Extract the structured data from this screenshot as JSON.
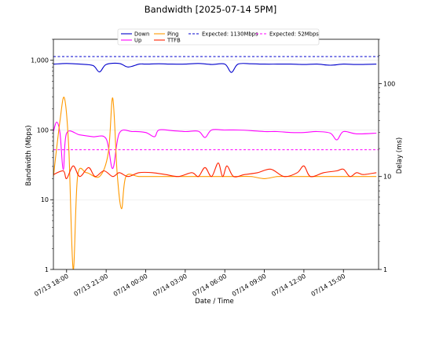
{
  "chart_data": {
    "type": "line",
    "title": "Bandwidth [2025-07-14 5PM]",
    "xlabel": "Date / Time",
    "ylabel": "Bandwidth (Mbps)",
    "ylabel_right": "Delay (ms)",
    "x_range": [
      "2025-07-13 17:00",
      "2025-07-14 17:40"
    ],
    "x_ticks": [
      {
        "t": "2025-07-13 18:00",
        "label": "07/13 18:00"
      },
      {
        "t": "2025-07-13 21:00",
        "label": "07/13 21:00"
      },
      {
        "t": "2025-07-14 00:00",
        "label": "07/14 00:00"
      },
      {
        "t": "2025-07-14 03:00",
        "label": "07/14 03:00"
      },
      {
        "t": "2025-07-14 06:00",
        "label": "07/14 06:00"
      },
      {
        "t": "2025-07-14 09:00",
        "label": "07/14 09:00"
      },
      {
        "t": "2025-07-14 12:00",
        "label": "07/14 12:00"
      },
      {
        "t": "2025-07-14 15:00",
        "label": "07/14 15:00"
      }
    ],
    "y_left": {
      "scale": "log",
      "range": [
        1,
        2000
      ],
      "ticks": [
        1,
        10,
        100,
        1000
      ],
      "tick_labels": [
        "1",
        "10",
        "100",
        "1,000"
      ]
    },
    "y_right": {
      "scale": "log",
      "range": [
        1,
        300
      ],
      "ticks": [
        1,
        10,
        100
      ],
      "tick_labels": [
        "1",
        "10",
        "100"
      ]
    },
    "legend": {
      "placement": "top-center"
    },
    "reference_lines": [
      {
        "name": "Expected: 1130Mbps",
        "value": 1130,
        "axis": "left",
        "color": "#0000cc",
        "style": "dashed"
      },
      {
        "name": "Expected: 52Mbps",
        "value": 52,
        "axis": "left",
        "color": "#ff00ff",
        "style": "dashed"
      }
    ],
    "series": [
      {
        "name": "Down",
        "axis": "left",
        "color": "#0000cc",
        "points": [
          [
            "2025-07-13 17:00",
            880
          ],
          [
            "2025-07-13 18:00",
            900
          ],
          [
            "2025-07-13 19:00",
            880
          ],
          [
            "2025-07-13 20:00",
            840
          ],
          [
            "2025-07-13 20:30",
            680
          ],
          [
            "2025-07-13 21:00",
            870
          ],
          [
            "2025-07-13 22:00",
            900
          ],
          [
            "2025-07-13 22:40",
            800
          ],
          [
            "2025-07-13 23:30",
            880
          ],
          [
            "2025-07-14 00:00",
            880
          ],
          [
            "2025-07-14 01:00",
            890
          ],
          [
            "2025-07-14 02:00",
            880
          ],
          [
            "2025-07-14 03:00",
            880
          ],
          [
            "2025-07-14 04:00",
            900
          ],
          [
            "2025-07-14 05:00",
            870
          ],
          [
            "2025-07-14 06:00",
            880
          ],
          [
            "2025-07-14 06:30",
            670
          ],
          [
            "2025-07-14 07:00",
            880
          ],
          [
            "2025-07-14 08:00",
            890
          ],
          [
            "2025-07-14 09:00",
            880
          ],
          [
            "2025-07-14 10:00",
            880
          ],
          [
            "2025-07-14 11:00",
            880
          ],
          [
            "2025-07-14 12:00",
            870
          ],
          [
            "2025-07-14 13:00",
            880
          ],
          [
            "2025-07-14 14:00",
            850
          ],
          [
            "2025-07-14 15:00",
            880
          ],
          [
            "2025-07-14 16:00",
            870
          ],
          [
            "2025-07-14 17:30",
            880
          ]
        ]
      },
      {
        "name": "Up",
        "axis": "left",
        "color": "#ff00ff",
        "points": [
          [
            "2025-07-13 17:00",
            95
          ],
          [
            "2025-07-13 17:15",
            130
          ],
          [
            "2025-07-13 17:30",
            90
          ],
          [
            "2025-07-13 17:45",
            27
          ],
          [
            "2025-07-13 18:00",
            90
          ],
          [
            "2025-07-13 19:00",
            85
          ],
          [
            "2025-07-13 20:00",
            80
          ],
          [
            "2025-07-13 21:00",
            75
          ],
          [
            "2025-07-13 21:30",
            28
          ],
          [
            "2025-07-13 22:00",
            90
          ],
          [
            "2025-07-13 23:00",
            95
          ],
          [
            "2025-07-14 00:00",
            92
          ],
          [
            "2025-07-14 00:40",
            80
          ],
          [
            "2025-07-14 01:00",
            100
          ],
          [
            "2025-07-14 02:00",
            98
          ],
          [
            "2025-07-14 03:00",
            95
          ],
          [
            "2025-07-14 04:00",
            96
          ],
          [
            "2025-07-14 04:30",
            78
          ],
          [
            "2025-07-14 05:00",
            100
          ],
          [
            "2025-07-14 06:00",
            100
          ],
          [
            "2025-07-14 07:00",
            100
          ],
          [
            "2025-07-14 08:00",
            98
          ],
          [
            "2025-07-14 09:00",
            95
          ],
          [
            "2025-07-14 10:00",
            95
          ],
          [
            "2025-07-14 11:00",
            92
          ],
          [
            "2025-07-14 12:00",
            92
          ],
          [
            "2025-07-14 13:00",
            95
          ],
          [
            "2025-07-14 14:00",
            90
          ],
          [
            "2025-07-14 14:30",
            72
          ],
          [
            "2025-07-14 15:00",
            95
          ],
          [
            "2025-07-14 16:00",
            88
          ],
          [
            "2025-07-14 17:30",
            90
          ]
        ]
      },
      {
        "name": "Ping",
        "axis": "right",
        "color": "#ff9900",
        "points": [
          [
            "2025-07-13 17:00",
            10
          ],
          [
            "2025-07-13 17:30",
            40
          ],
          [
            "2025-07-13 17:50",
            70
          ],
          [
            "2025-07-13 18:10",
            20
          ],
          [
            "2025-07-13 18:30",
            1
          ],
          [
            "2025-07-13 18:50",
            10
          ],
          [
            "2025-07-13 19:30",
            11
          ],
          [
            "2025-07-13 20:30",
            10
          ],
          [
            "2025-07-13 21:10",
            18
          ],
          [
            "2025-07-13 21:30",
            70
          ],
          [
            "2025-07-13 21:50",
            11
          ],
          [
            "2025-07-13 22:10",
            4.5
          ],
          [
            "2025-07-13 22:30",
            10
          ],
          [
            "2025-07-13 23:30",
            10
          ],
          [
            "2025-07-14 01:00",
            10
          ],
          [
            "2025-07-14 02:00",
            10
          ],
          [
            "2025-07-14 03:00",
            10
          ],
          [
            "2025-07-14 04:00",
            10
          ],
          [
            "2025-07-14 05:00",
            10
          ],
          [
            "2025-07-14 06:00",
            10
          ],
          [
            "2025-07-14 07:00",
            10
          ],
          [
            "2025-07-14 08:00",
            10
          ],
          [
            "2025-07-14 09:00",
            9.5
          ],
          [
            "2025-07-14 10:00",
            10
          ],
          [
            "2025-07-14 11:00",
            10
          ],
          [
            "2025-07-14 12:00",
            10
          ],
          [
            "2025-07-14 13:00",
            10
          ],
          [
            "2025-07-14 14:00",
            10
          ],
          [
            "2025-07-14 15:00",
            10
          ],
          [
            "2025-07-14 16:00",
            10
          ],
          [
            "2025-07-14 17:30",
            10
          ]
        ]
      },
      {
        "name": "TTFB",
        "axis": "right",
        "color": "#ff2200",
        "points": [
          [
            "2025-07-13 17:00",
            10.5
          ],
          [
            "2025-07-13 17:45",
            11.5
          ],
          [
            "2025-07-13 18:00",
            9.5
          ],
          [
            "2025-07-13 18:30",
            13
          ],
          [
            "2025-07-13 19:00",
            10
          ],
          [
            "2025-07-13 19:40",
            12.5
          ],
          [
            "2025-07-13 20:10",
            10
          ],
          [
            "2025-07-13 20:50",
            11.5
          ],
          [
            "2025-07-13 21:30",
            10
          ],
          [
            "2025-07-13 22:00",
            11
          ],
          [
            "2025-07-13 22:40",
            10
          ],
          [
            "2025-07-13 23:30",
            11
          ],
          [
            "2025-07-14 00:30",
            11
          ],
          [
            "2025-07-14 01:30",
            10.5
          ],
          [
            "2025-07-14 02:30",
            10
          ],
          [
            "2025-07-14 03:30",
            11
          ],
          [
            "2025-07-14 04:00",
            10
          ],
          [
            "2025-07-14 04:30",
            12.5
          ],
          [
            "2025-07-14 05:00",
            10
          ],
          [
            "2025-07-14 05:30",
            14
          ],
          [
            "2025-07-14 05:50",
            10
          ],
          [
            "2025-07-14 06:10",
            13
          ],
          [
            "2025-07-14 06:40",
            10
          ],
          [
            "2025-07-14 07:30",
            10.5
          ],
          [
            "2025-07-14 08:30",
            11
          ],
          [
            "2025-07-14 09:30",
            12
          ],
          [
            "2025-07-14 10:30",
            10
          ],
          [
            "2025-07-14 11:30",
            11
          ],
          [
            "2025-07-14 12:00",
            13
          ],
          [
            "2025-07-14 12:30",
            10
          ],
          [
            "2025-07-14 13:30",
            11
          ],
          [
            "2025-07-14 14:30",
            11.5
          ],
          [
            "2025-07-14 15:00",
            12
          ],
          [
            "2025-07-14 15:30",
            10
          ],
          [
            "2025-07-14 16:00",
            11
          ],
          [
            "2025-07-14 16:30",
            10.5
          ],
          [
            "2025-07-14 17:30",
            11
          ]
        ]
      }
    ]
  }
}
